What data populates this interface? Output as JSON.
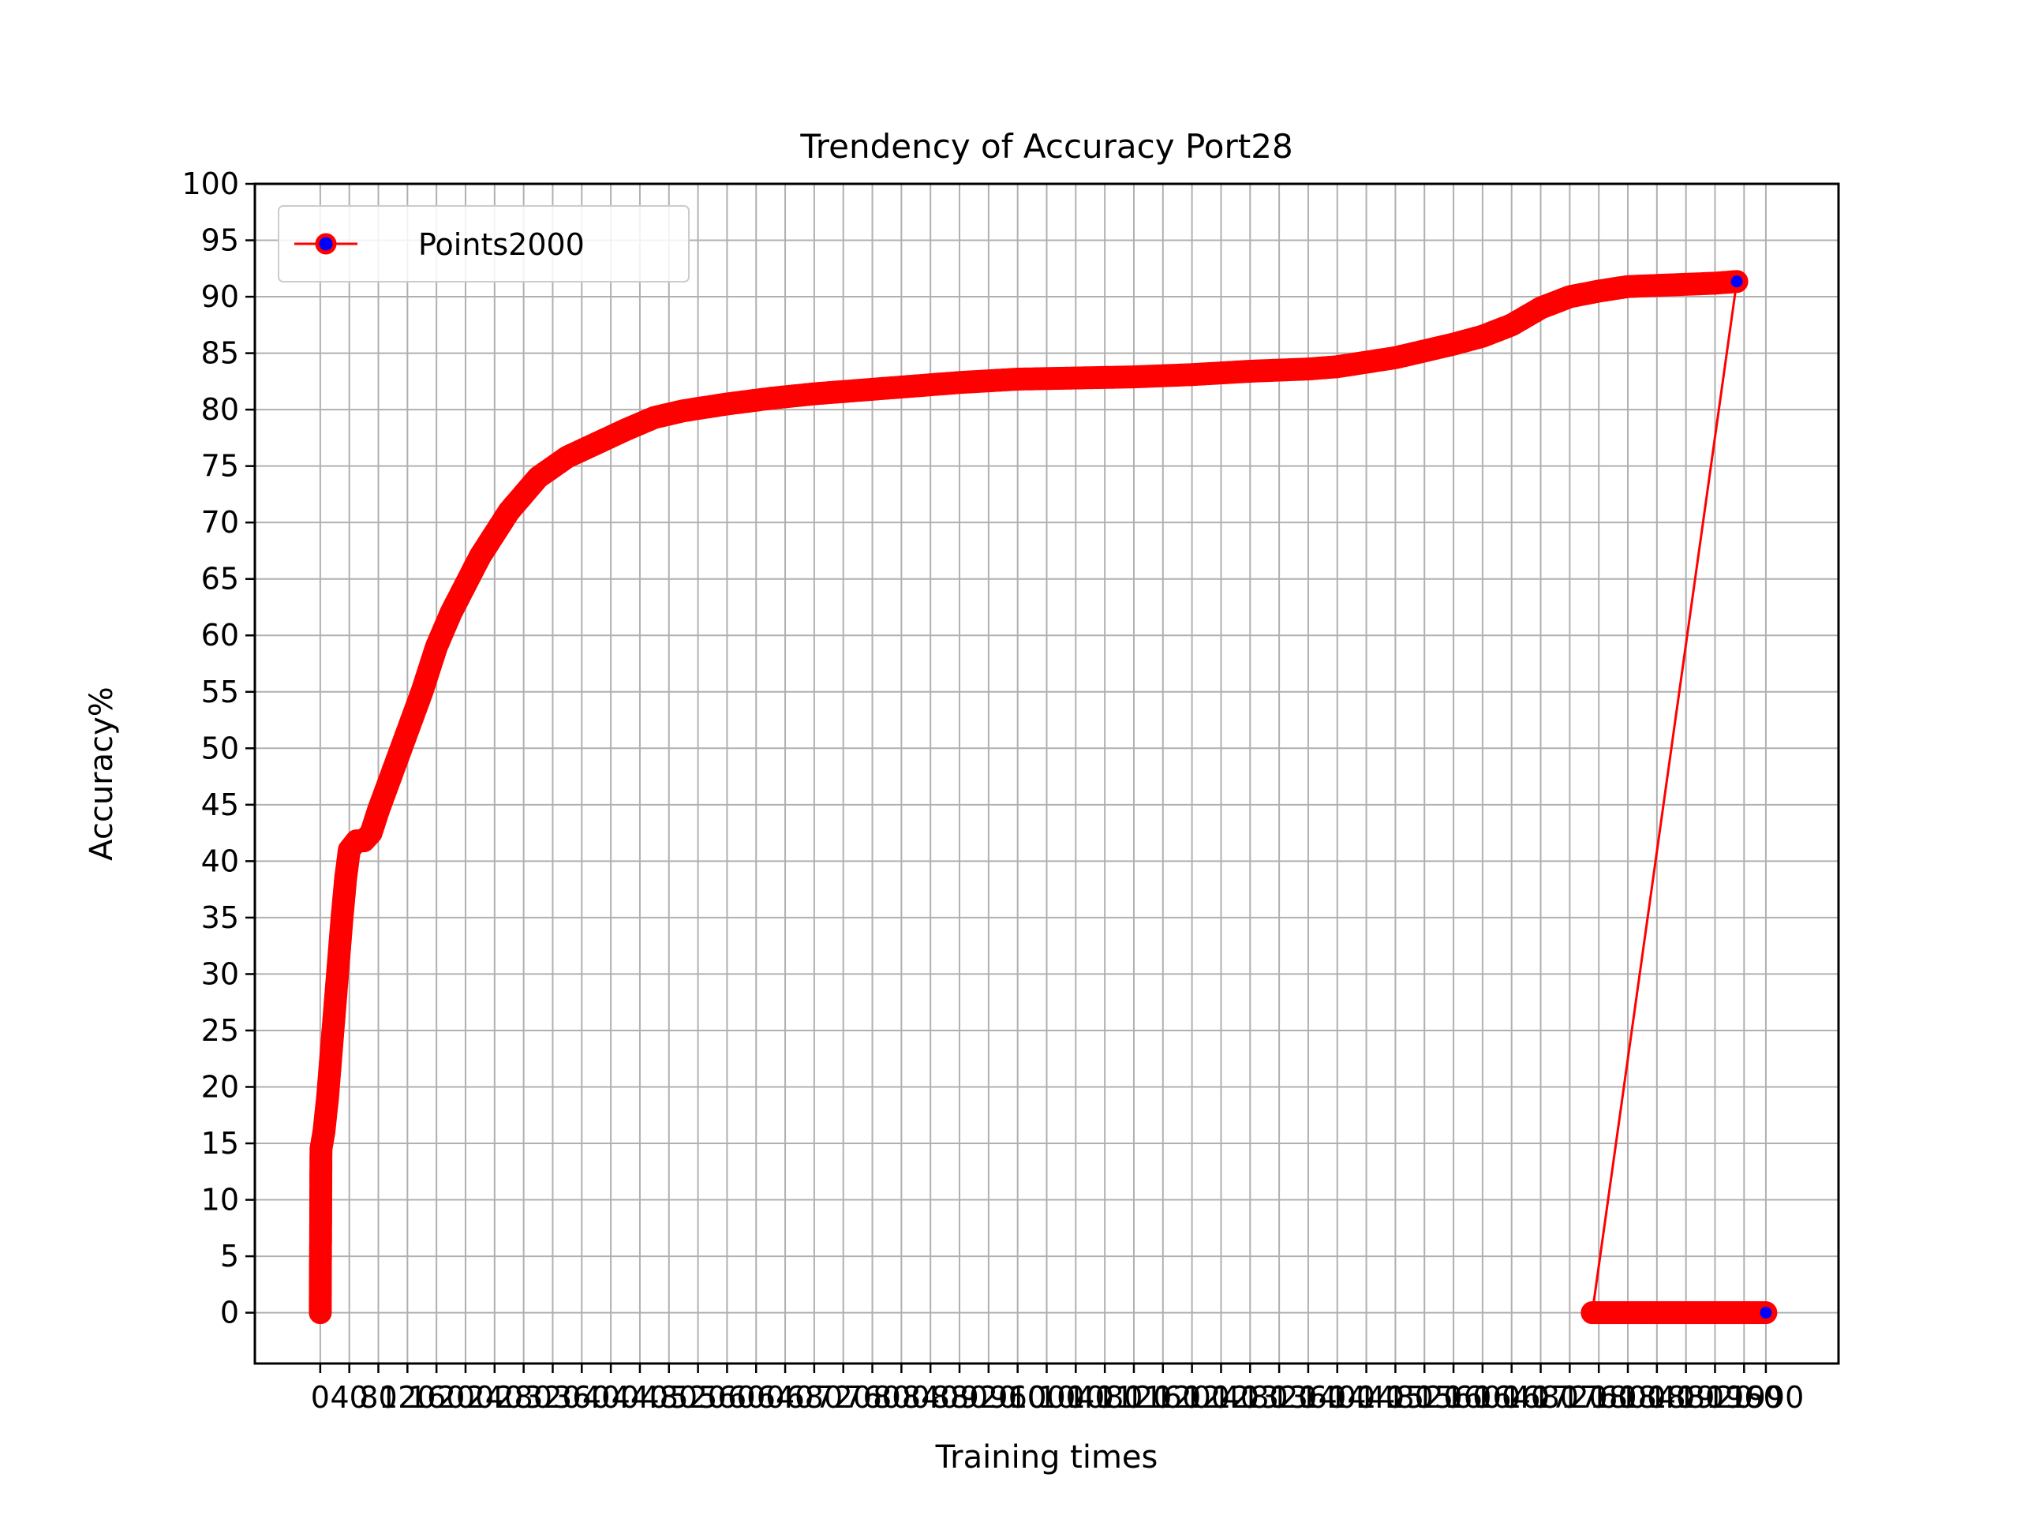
{
  "chart_data": {
    "type": "line",
    "title": "Trendency of Accuracy Port28",
    "xlabel": "Training times",
    "ylabel": "Accuracy%",
    "ylim": [
      -4.5,
      100
    ],
    "xlim": [
      -90,
      2090
    ],
    "yticks": [
      0,
      5,
      10,
      15,
      20,
      25,
      30,
      35,
      40,
      45,
      50,
      55,
      60,
      65,
      70,
      75,
      80,
      85,
      90,
      95,
      100
    ],
    "xticks": [
      0,
      40,
      80,
      120,
      160,
      200,
      240,
      280,
      320,
      360,
      400,
      440,
      480,
      520,
      560,
      600,
      640,
      680,
      720,
      760,
      800,
      840,
      880,
      920,
      960,
      1000,
      1040,
      1080,
      1120,
      1160,
      1200,
      1240,
      1280,
      1320,
      1360,
      1400,
      1440,
      1480,
      1520,
      1560,
      1600,
      1640,
      1680,
      1720,
      1760,
      1800,
      1840,
      1880,
      1920,
      1960,
      1990
    ],
    "xtick_labels_note": "",
    "grid": true,
    "legend_position": "top-left",
    "colors": {
      "line": "#ff0000",
      "marker_edge": "#ff0000",
      "marker_face": "#0000ff",
      "grid": "#b0b0b0"
    },
    "series": [
      {
        "name": "Points2000",
        "points": [
          [
            0,
            0
          ],
          [
            1,
            14.5
          ],
          [
            5,
            16
          ],
          [
            10,
            19
          ],
          [
            15,
            23
          ],
          [
            20,
            27
          ],
          [
            25,
            31
          ],
          [
            30,
            35
          ],
          [
            35,
            38.5
          ],
          [
            40,
            41
          ],
          [
            50,
            41.8
          ],
          [
            60,
            41.8
          ],
          [
            70,
            42.5
          ],
          [
            80,
            44.5
          ],
          [
            100,
            48
          ],
          [
            120,
            51.5
          ],
          [
            140,
            55
          ],
          [
            160,
            59
          ],
          [
            180,
            62
          ],
          [
            200,
            64.5
          ],
          [
            220,
            67
          ],
          [
            240,
            69
          ],
          [
            260,
            71
          ],
          [
            280,
            72.5
          ],
          [
            300,
            74
          ],
          [
            340,
            75.8
          ],
          [
            380,
            77
          ],
          [
            420,
            78.2
          ],
          [
            460,
            79.3
          ],
          [
            500,
            79.9
          ],
          [
            560,
            80.5
          ],
          [
            620,
            81
          ],
          [
            680,
            81.4
          ],
          [
            740,
            81.7
          ],
          [
            800,
            82
          ],
          [
            880,
            82.4
          ],
          [
            960,
            82.7
          ],
          [
            1040,
            82.8
          ],
          [
            1120,
            82.9
          ],
          [
            1200,
            83.1
          ],
          [
            1280,
            83.4
          ],
          [
            1360,
            83.6
          ],
          [
            1400,
            83.8
          ],
          [
            1440,
            84.2
          ],
          [
            1480,
            84.6
          ],
          [
            1520,
            85.2
          ],
          [
            1560,
            85.8
          ],
          [
            1600,
            86.5
          ],
          [
            1640,
            87.5
          ],
          [
            1680,
            89
          ],
          [
            1720,
            90
          ],
          [
            1760,
            90.5
          ],
          [
            1800,
            90.9
          ],
          [
            1840,
            91
          ],
          [
            1880,
            91.1
          ],
          [
            1920,
            91.2
          ],
          [
            1940,
            91.3
          ],
          [
            1950,
            91.35
          ],
          [
            1751,
            0
          ],
          [
            1990,
            0
          ]
        ]
      }
    ]
  }
}
